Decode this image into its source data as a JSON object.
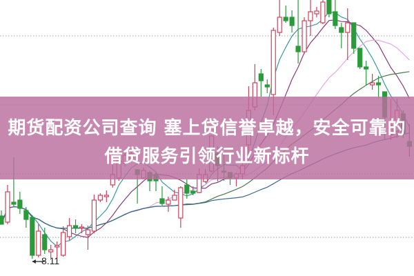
{
  "headline": {
    "line1": "期货配资公司查询 塞上贷信誉卓越，安全可靠的",
    "line2": "借贷服务引领行业新标杆"
  },
  "chart_data": {
    "type": "candlestick",
    "title": "",
    "xlabel": "",
    "ylabel": "",
    "ylim": [
      8.11,
      11.86
    ],
    "grid": true,
    "annotation": {
      "text": "8.11",
      "candle_index": 5
    },
    "colors": {
      "up": "#d0405a",
      "down": "#2a9a3a",
      "ma": [
        "#3a9aa0",
        "#8a3a78",
        "#e6a6e6",
        "#4a7a4a",
        "#3a6a8e"
      ]
    },
    "moving_average_windows": [
      5,
      10,
      20,
      30,
      60
    ],
    "candles_ohlc": [
      [
        8.73,
        8.81,
        8.61,
        8.61
      ],
      [
        8.64,
        9.18,
        8.61,
        9.08
      ],
      [
        8.93,
        9.58,
        8.86,
        8.9
      ],
      [
        8.96,
        9.08,
        8.76,
        8.84
      ],
      [
        8.81,
        8.86,
        8.56,
        8.68
      ],
      [
        8.71,
        8.74,
        8.11,
        8.16
      ],
      [
        8.16,
        8.61,
        8.13,
        8.51
      ],
      [
        8.46,
        8.56,
        8.18,
        8.24
      ],
      [
        8.21,
        8.31,
        8.12,
        8.24
      ],
      [
        8.28,
        8.36,
        8.12,
        8.3
      ],
      [
        8.16,
        8.58,
        8.14,
        8.49
      ],
      [
        8.43,
        8.7,
        8.38,
        8.59
      ],
      [
        8.59,
        8.68,
        8.48,
        8.56
      ],
      [
        8.56,
        8.61,
        8.48,
        8.57
      ],
      [
        8.46,
        8.59,
        8.24,
        8.53
      ],
      [
        8.51,
        9.04,
        8.48,
        8.96
      ],
      [
        8.96,
        9.06,
        8.93,
        9.03
      ],
      [
        9.01,
        9.1,
        8.93,
        9.03
      ],
      [
        9.18,
        9.68,
        9.14,
        9.33
      ],
      [
        9.28,
        9.73,
        9.24,
        9.53
      ],
      [
        9.49,
        9.66,
        9.45,
        9.61
      ],
      [
        9.56,
        9.68,
        9.54,
        9.63
      ],
      [
        9.4,
        9.41,
        8.91,
        9.33
      ],
      [
        9.28,
        9.43,
        9.28,
        9.39
      ],
      [
        9.36,
        9.39,
        9.09,
        9.24
      ],
      [
        9.33,
        9.36,
        9.09,
        9.24
      ],
      [
        8.98,
        9.16,
        8.88,
        8.91
      ],
      [
        8.9,
        9.01,
        8.79,
        8.96
      ],
      [
        8.96,
        9.11,
        8.96,
        9.03
      ],
      [
        8.7,
        9.16,
        8.56,
        9.14
      ],
      [
        9.18,
        9.26,
        8.98,
        9.06
      ],
      [
        9.09,
        9.16,
        9.03,
        9.06
      ],
      [
        9.07,
        9.42,
        9.06,
        9.33
      ],
      [
        9.23,
        9.41,
        9.21,
        9.33
      ],
      [
        9.38,
        9.89,
        9.36,
        9.89
      ],
      [
        9.64,
        9.74,
        9.23,
        9.46
      ],
      [
        9.38,
        9.64,
        9.24,
        9.37
      ],
      [
        9.36,
        9.36,
        9.18,
        9.28
      ],
      [
        9.28,
        9.36,
        9.16,
        9.34
      ],
      [
        9.34,
        9.61,
        9.26,
        9.46
      ],
      [
        9.76,
        10.61,
        9.56,
        10.26
      ],
      [
        10.31,
        10.93,
        10.26,
        10.66
      ],
      [
        10.79,
        10.86,
        10.46,
        10.69
      ],
      [
        10.63,
        10.71,
        10.51,
        10.6
      ],
      [
        10.49,
        11.46,
        10.19,
        11.42
      ],
      [
        11.39,
        11.86,
        11.34,
        11.61
      ],
      [
        11.61,
        11.78,
        11.53,
        11.56
      ],
      [
        11.61,
        11.71,
        11.39,
        11.49
      ],
      [
        11.19,
        11.86,
        10.94,
        11.11
      ],
      [
        11.11,
        11.61,
        11.08,
        11.56
      ],
      [
        11.56,
        11.86,
        11.34,
        11.69
      ],
      [
        11.66,
        11.76,
        11.61,
        11.7
      ],
      [
        11.53,
        11.86,
        11.51,
        11.83
      ],
      [
        11.86,
        11.86,
        11.61,
        11.66
      ],
      [
        11.69,
        11.86,
        11.44,
        11.49
      ],
      [
        11.46,
        11.53,
        11.16,
        11.39
      ],
      [
        11.39,
        11.74,
        10.99,
        11.53
      ],
      [
        11.53,
        11.53,
        11.08,
        11.16
      ],
      [
        11.16,
        11.16,
        10.86,
        10.89
      ],
      [
        10.89,
        10.98,
        10.63,
        10.86
      ],
      [
        10.63,
        10.79,
        10.56,
        10.66
      ],
      [
        10.66,
        10.76,
        10.44,
        10.63
      ],
      [
        10.53,
        10.53,
        9.83,
        10.16
      ],
      [
        9.91,
        10.43,
        9.83,
        10.03
      ],
      [
        9.96,
        10.43,
        9.86,
        10.26
      ],
      [
        10.21,
        10.26,
        9.86,
        9.93
      ],
      [
        9.81,
        10.06,
        9.59,
        9.74
      ]
    ]
  }
}
